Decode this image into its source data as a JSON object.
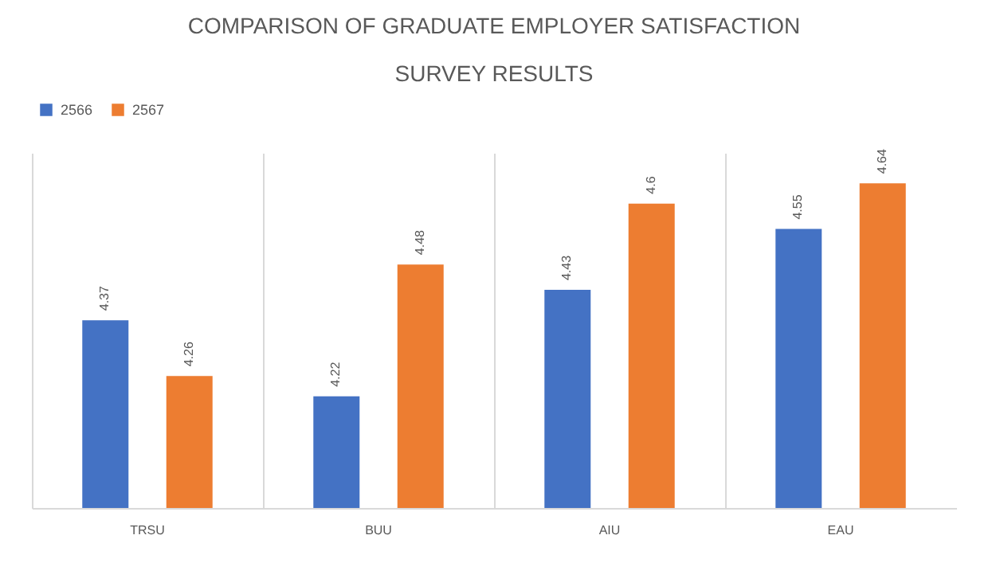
{
  "chart_data": {
    "type": "bar",
    "title": [
      "COMPARISON OF GRADUATE EMPLOYER SATISFACTION",
      "SURVEY RESULTS"
    ],
    "categories": [
      "TRSU",
      "BUU",
      "AIU",
      "EAU"
    ],
    "series": [
      {
        "name": "2566",
        "color": "#4472c4",
        "values": [
          4.37,
          4.22,
          4.43,
          4.55
        ]
      },
      {
        "name": "2567",
        "color": "#ed7d31",
        "values": [
          4.26,
          4.48,
          4.6,
          4.64
        ]
      }
    ],
    "ylim": [
      4,
      4.7
    ],
    "grid": "x",
    "legend": "top",
    "tick_labels": "x",
    "data_labels": true
  }
}
